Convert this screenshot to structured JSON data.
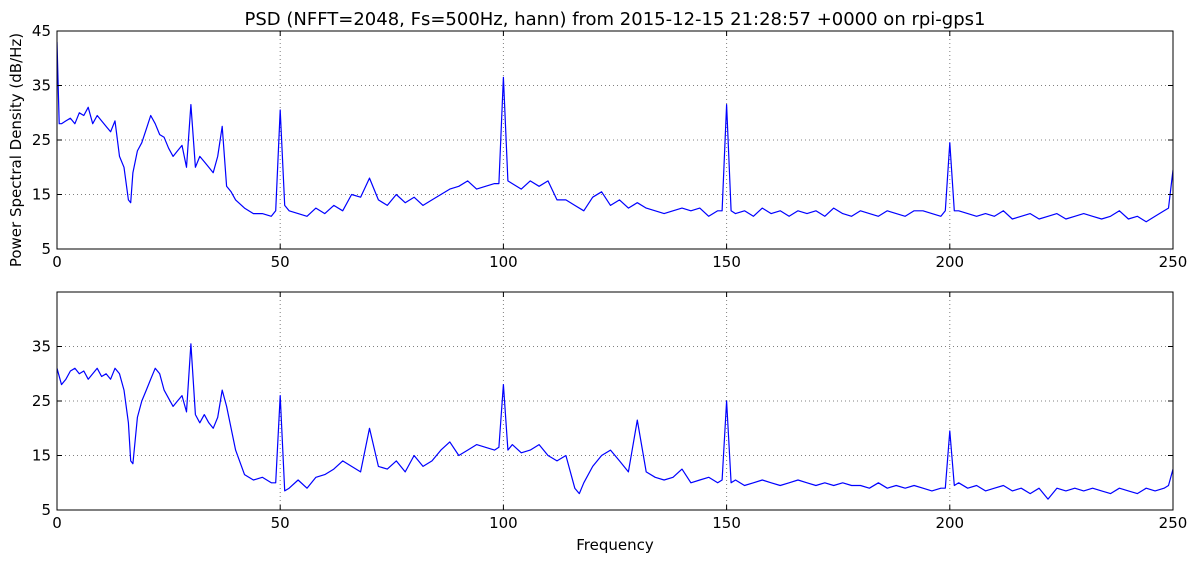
{
  "title": "PSD (NFFT=2048, Fs=500Hz, hann) from 2015-12-15 21:28:57 +0000 on rpi-gps1",
  "colors": {
    "line": "#0000ff",
    "grid": "#808080",
    "axes": "#000000",
    "background": "#ffffff"
  },
  "chart_data": [
    {
      "type": "line",
      "title": "PSD (NFFT=2048, Fs=500Hz, hann) from 2015-12-15 21:28:57 +0000 on rpi-gps1",
      "xlabel": "",
      "ylabel": "Power Spectral Density (dB/Hz)",
      "xlim": [
        0,
        250
      ],
      "ylim": [
        5,
        45
      ],
      "xticks": [
        0,
        50,
        100,
        150,
        200,
        250
      ],
      "yticks": [
        5,
        15,
        25,
        35,
        45
      ],
      "grid": true,
      "series": [
        {
          "x": [
            0,
            0.5,
            1,
            2,
            3,
            4,
            5,
            6,
            7,
            8,
            9,
            10,
            11,
            12,
            13,
            14,
            15,
            16,
            16.5,
            17,
            18,
            19,
            20,
            21,
            22,
            23,
            24,
            25,
            26,
            27,
            28,
            29,
            30,
            31,
            32,
            33,
            34,
            35,
            36,
            37,
            38,
            39,
            40,
            42,
            44,
            46,
            48,
            49,
            50,
            51,
            52,
            54,
            56,
            58,
            60,
            62,
            64,
            66,
            68,
            70,
            72,
            74,
            76,
            78,
            80,
            82,
            84,
            86,
            88,
            90,
            92,
            94,
            96,
            98,
            99,
            100,
            101,
            102,
            104,
            106,
            108,
            110,
            112,
            114,
            116,
            118,
            120,
            122,
            124,
            126,
            128,
            130,
            132,
            134,
            136,
            138,
            140,
            142,
            144,
            146,
            148,
            149,
            150,
            151,
            152,
            154,
            156,
            158,
            160,
            162,
            164,
            166,
            168,
            170,
            172,
            174,
            176,
            178,
            180,
            182,
            184,
            186,
            188,
            190,
            192,
            194,
            196,
            198,
            199,
            200,
            201,
            202,
            204,
            206,
            208,
            210,
            212,
            214,
            216,
            218,
            220,
            222,
            224,
            226,
            228,
            230,
            232,
            234,
            236,
            238,
            240,
            242,
            244,
            246,
            248,
            249,
            250
          ],
          "y": [
            43,
            28,
            28,
            28.5,
            29,
            28,
            30,
            29.5,
            31,
            28,
            29.5,
            28.5,
            27.5,
            26.5,
            28.5,
            22,
            20,
            14,
            13.5,
            19,
            23,
            24.5,
            27,
            29.5,
            28,
            26,
            25.5,
            23.5,
            22,
            23,
            24,
            20,
            31.5,
            20,
            22,
            21,
            20,
            19,
            22,
            27.5,
            16.5,
            15.5,
            14,
            12.5,
            11.5,
            11.5,
            11,
            12,
            30.5,
            13,
            12,
            11.5,
            11,
            12.5,
            11.5,
            13,
            12,
            15,
            14.5,
            18,
            14,
            13,
            15,
            13.5,
            14.5,
            13,
            14,
            15,
            16,
            16.5,
            17.5,
            16,
            16.5,
            17,
            17,
            36.5,
            17.5,
            17,
            16,
            17.5,
            16.5,
            17.5,
            14,
            14,
            13,
            12,
            14.5,
            15.5,
            13,
            14,
            12.5,
            13.5,
            12.5,
            12,
            11.5,
            12,
            12.5,
            12,
            12.5,
            11,
            12,
            12,
            31.5,
            12,
            11.5,
            12,
            11,
            12.5,
            11.5,
            12,
            11,
            12,
            11.5,
            12,
            11,
            12.5,
            11.5,
            11,
            12,
            11.5,
            11,
            12,
            11.5,
            11,
            12,
            12,
            11.5,
            11,
            12,
            24.5,
            12,
            12,
            11.5,
            11,
            11.5,
            11,
            12,
            10.5,
            11,
            11.5,
            10.5,
            11,
            11.5,
            10.5,
            11,
            11.5,
            11,
            10.5,
            11,
            12,
            10.5,
            11,
            10,
            11,
            12,
            12.5,
            19.5
          ]
        }
      ]
    },
    {
      "type": "line",
      "title": "",
      "xlabel": "Frequency",
      "ylabel": "",
      "xlim": [
        0,
        250
      ],
      "ylim": [
        5,
        45
      ],
      "xticks": [
        0,
        50,
        100,
        150,
        200,
        250
      ],
      "yticks": [
        5,
        15,
        25,
        35
      ],
      "grid": true,
      "series": [
        {
          "x": [
            0,
            1,
            2,
            3,
            4,
            5,
            6,
            7,
            8,
            9,
            10,
            11,
            12,
            13,
            14,
            15,
            16,
            16.5,
            17,
            18,
            19,
            20,
            21,
            22,
            23,
            24,
            25,
            26,
            27,
            28,
            29,
            30,
            31,
            32,
            33,
            34,
            35,
            36,
            37,
            38,
            39,
            40,
            42,
            44,
            46,
            48,
            49,
            50,
            51,
            52,
            54,
            56,
            58,
            60,
            62,
            64,
            66,
            68,
            70,
            72,
            74,
            76,
            78,
            80,
            82,
            84,
            86,
            88,
            90,
            92,
            94,
            96,
            98,
            99,
            100,
            101,
            102,
            104,
            106,
            108,
            110,
            112,
            114,
            116,
            117,
            118,
            120,
            122,
            124,
            126,
            128,
            130,
            132,
            134,
            136,
            138,
            140,
            142,
            144,
            146,
            148,
            149,
            150,
            151,
            152,
            154,
            156,
            158,
            160,
            162,
            164,
            166,
            168,
            170,
            172,
            174,
            176,
            178,
            180,
            182,
            184,
            186,
            188,
            190,
            192,
            194,
            196,
            198,
            199,
            200,
            201,
            202,
            204,
            206,
            208,
            210,
            212,
            214,
            216,
            218,
            220,
            222,
            224,
            226,
            228,
            230,
            232,
            234,
            236,
            238,
            240,
            242,
            244,
            246,
            248,
            249,
            250
          ],
          "y": [
            31,
            28,
            29,
            30.5,
            31,
            30,
            30.5,
            29,
            30,
            31,
            29.5,
            30,
            29,
            31,
            30,
            27,
            21,
            14,
            13.5,
            22,
            25,
            27,
            29,
            31,
            30,
            27,
            25.5,
            24,
            25,
            26,
            23,
            35.5,
            22.5,
            21,
            22.5,
            21,
            20,
            22,
            27,
            24,
            20,
            16,
            11.5,
            10.5,
            11,
            10,
            10,
            26,
            8.5,
            9,
            10.5,
            9,
            11,
            11.5,
            12.5,
            14,
            13,
            12,
            20,
            13,
            12.5,
            14,
            12,
            15,
            13,
            14,
            16,
            17.5,
            15,
            16,
            17,
            16.5,
            16,
            16.5,
            28,
            16,
            17,
            15.5,
            16,
            17,
            15,
            14,
            15,
            9,
            8,
            10,
            13,
            15,
            16,
            14,
            12,
            21.5,
            12,
            11,
            10.5,
            11,
            12.5,
            10,
            10.5,
            11,
            10,
            10.5,
            25,
            10,
            10.5,
            9.5,
            10,
            10.5,
            10,
            9.5,
            10,
            10.5,
            10,
            9.5,
            10,
            9.5,
            10,
            9.5,
            9.5,
            9,
            10,
            9,
            9.5,
            9,
            9.5,
            9,
            8.5,
            9,
            9,
            19.5,
            9.5,
            10,
            9,
            9.5,
            8.5,
            9,
            9.5,
            8.5,
            9,
            8,
            9,
            7,
            9,
            8.5,
            9,
            8.5,
            9,
            8.5,
            8,
            9,
            8.5,
            8,
            9,
            8.5,
            9,
            9.5,
            12.5
          ]
        }
      ]
    }
  ]
}
